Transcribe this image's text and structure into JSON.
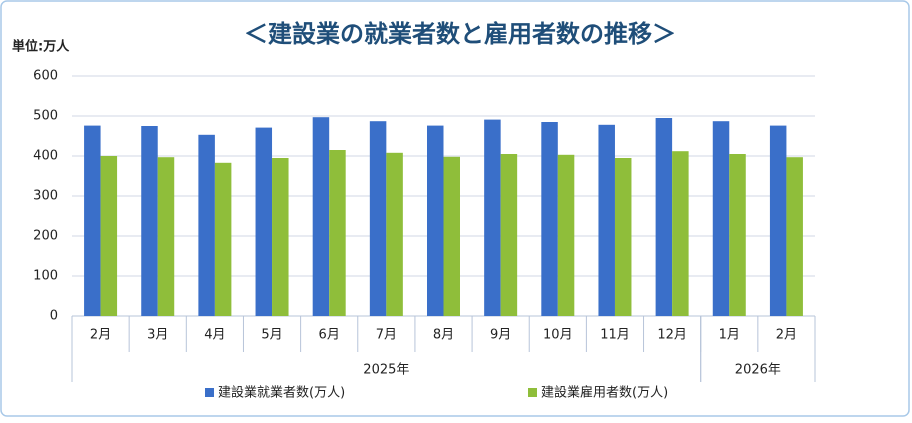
{
  "chart_data": {
    "type": "bar",
    "title": "＜建設業の就業者数と雇用者数の推移＞",
    "unit_label": "単位:万人",
    "categories": [
      "2月",
      "3月",
      "4月",
      "5月",
      "6月",
      "7月",
      "8月",
      "9月",
      "10月",
      "11月",
      "12月",
      "1月",
      "2月"
    ],
    "category_groups": [
      {
        "label": "2025年",
        "span": 11
      },
      {
        "label": "2026年",
        "span": 2
      }
    ],
    "series": [
      {
        "name": "建設業就業者数(万人)",
        "color": "#3a6fc9",
        "values": [
          476,
          475,
          453,
          471,
          497,
          487,
          476,
          491,
          485,
          478,
          495,
          487,
          476
        ]
      },
      {
        "name": "建設業雇用者数(万人)",
        "color": "#8fbe3a",
        "values": [
          400,
          397,
          383,
          395,
          415,
          408,
          398,
          405,
          403,
          395,
          412,
          405,
          397
        ]
      }
    ],
    "ylim": [
      0,
      600
    ],
    "yticks": [
      0,
      100,
      200,
      300,
      400,
      500,
      600
    ],
    "grid": true
  }
}
